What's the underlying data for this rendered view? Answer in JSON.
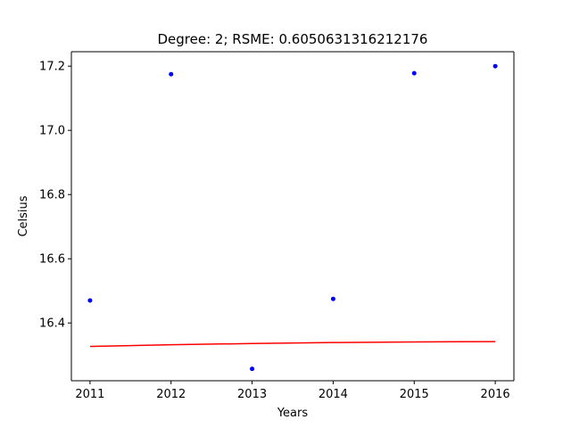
{
  "chart_data": {
    "type": "scatter",
    "title": "Degree: 2; RSME: 0.6050631316212176",
    "xlabel": "Years",
    "ylabel": "Celsius",
    "xlim": [
      2010.77,
      2016.23
    ],
    "ylim": [
      16.22,
      17.245
    ],
    "x_ticks": [
      2011,
      2012,
      2013,
      2014,
      2015,
      2016
    ],
    "y_ticks": [
      16.4,
      16.6,
      16.8,
      17.0,
      17.2
    ],
    "x_tick_labels": [
      "2011",
      "2012",
      "2013",
      "2014",
      "2015",
      "2016"
    ],
    "y_tick_labels": [
      "16.4",
      "16.6",
      "16.8",
      "17.0",
      "17.2"
    ],
    "grid": false,
    "legend": false,
    "series": [
      {
        "kind": "scatter",
        "color": "#0000ff",
        "x": [
          2011,
          2012,
          2013,
          2014,
          2015,
          2016
        ],
        "y": [
          16.47,
          17.175,
          16.257,
          16.475,
          17.178,
          17.2
        ]
      },
      {
        "kind": "line",
        "color": "#ff0000",
        "x": [
          2011,
          2012,
          2013,
          2014,
          2015,
          2016
        ],
        "y": [
          16.327,
          16.332,
          16.336,
          16.339,
          16.341,
          16.342
        ]
      }
    ]
  }
}
